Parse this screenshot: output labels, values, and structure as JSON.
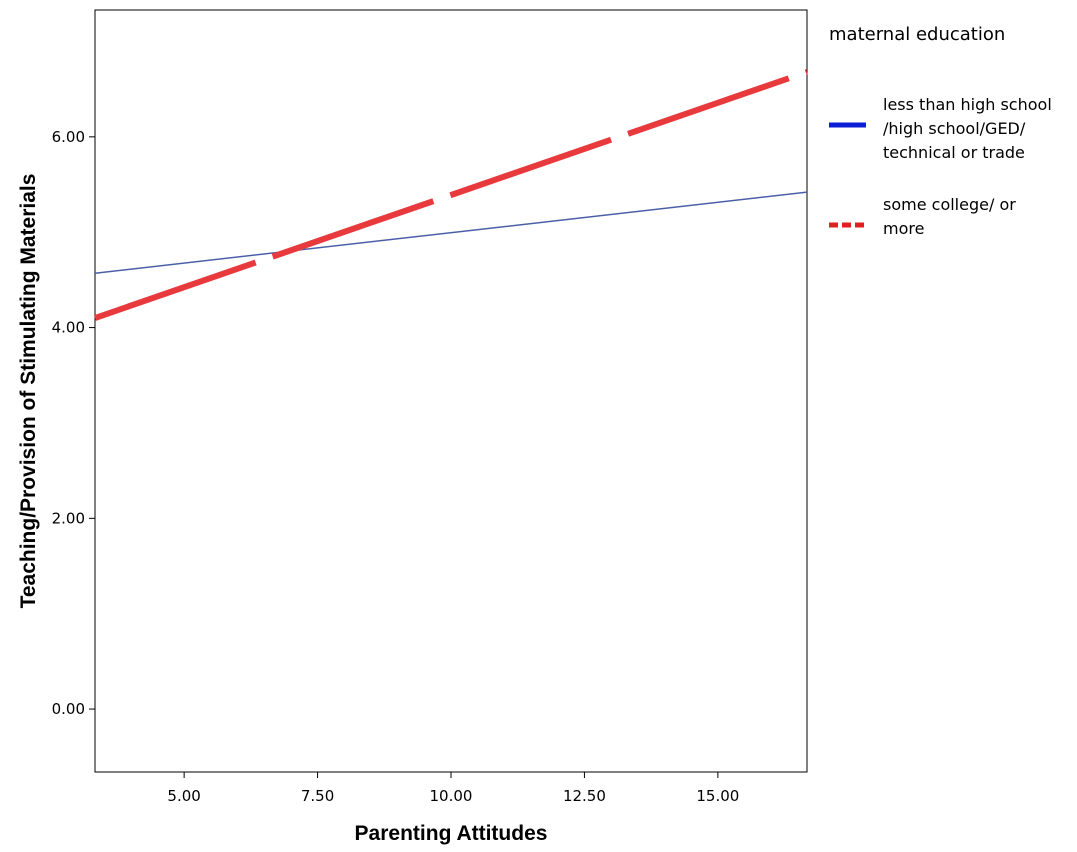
{
  "chart_data": {
    "type": "line",
    "xlabel": "Parenting Attitudes",
    "ylabel": "Teaching/Provision of Stimulating Materials",
    "xlim": [
      3.33,
      16.67
    ],
    "ylim": [
      -0.66,
      7.33
    ],
    "xticks": [
      5,
      7.5,
      10,
      12.5,
      15
    ],
    "xtick_labels": [
      "5.00",
      "7.50",
      "10.00",
      "12.50",
      "15.00"
    ],
    "yticks": [
      0,
      2,
      4,
      6
    ],
    "ytick_labels": [
      "0.00",
      "2.00",
      "4.00",
      "6.00"
    ],
    "grid": false,
    "legend": {
      "title": "maternal education",
      "placement": "right"
    },
    "series": [
      {
        "name_lines": [
          "less than high school",
          "/high school/GED/",
          "technical or trade"
        ],
        "x": [
          3.33,
          16.67
        ],
        "y": [
          4.57,
          5.42
        ],
        "color": "#4a5fa8",
        "legend_color": "#0a1ed6",
        "style": "solid"
      },
      {
        "name_lines": [
          "some college/ or",
          "more"
        ],
        "x": [
          3.33,
          16.67
        ],
        "y": [
          4.1,
          6.68
        ],
        "color": "#e8393d",
        "legend_color": "#e01f1f",
        "style": "dashed"
      }
    ]
  }
}
